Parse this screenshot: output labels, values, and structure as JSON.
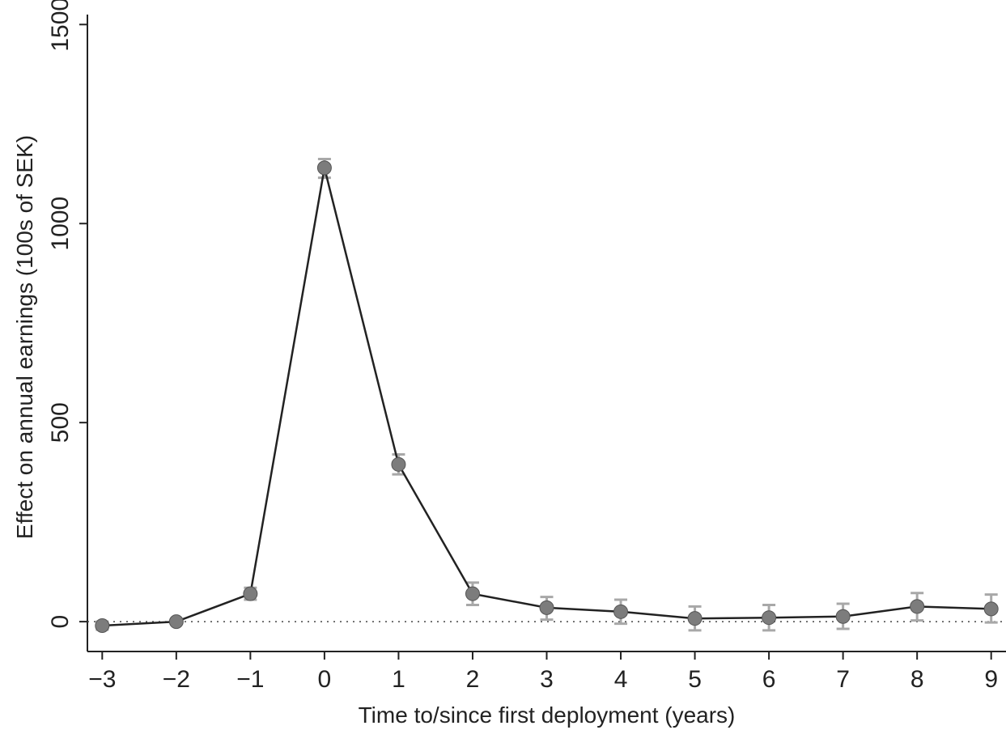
{
  "chart_data": {
    "type": "line",
    "title": "",
    "xlabel": "Time to/since first deployment (years)",
    "ylabel": "Effect on annual earnings  (100s of SEK)",
    "xlim": [
      -3.2,
      9.2
    ],
    "ylim": [
      -75,
      1525
    ],
    "x_ticks": [
      -3,
      -2,
      -1,
      0,
      1,
      2,
      3,
      4,
      5,
      6,
      7,
      8,
      9
    ],
    "x_tick_labels": [
      "−3",
      "−2",
      "−1",
      "0",
      "1",
      "2",
      "3",
      "4",
      "5",
      "6",
      "7",
      "8",
      "9"
    ],
    "y_ticks": [
      0,
      500,
      1000,
      1500
    ],
    "y_tick_labels": [
      "0",
      "500",
      "1000",
      "1500"
    ],
    "reference_line_y": 0,
    "grid": false,
    "legend": "none",
    "colors": {
      "line": "#222222",
      "marker": "#7c7c7c",
      "error_bar": "#a8a8a8"
    },
    "series": [
      {
        "x": [
          -3,
          -2,
          -1,
          0,
          1,
          2,
          3,
          4,
          5,
          6,
          7,
          8,
          9
        ],
        "y": [
          -10,
          0,
          70,
          1140,
          395,
          70,
          35,
          25,
          8,
          10,
          13,
          38,
          32
        ],
        "ci_low": [
          -20,
          -5,
          55,
          1115,
          370,
          42,
          5,
          -5,
          -22,
          -22,
          -18,
          3,
          -2
        ],
        "ci_high": [
          0,
          5,
          85,
          1162,
          420,
          98,
          62,
          55,
          38,
          42,
          45,
          72,
          68
        ]
      }
    ]
  }
}
